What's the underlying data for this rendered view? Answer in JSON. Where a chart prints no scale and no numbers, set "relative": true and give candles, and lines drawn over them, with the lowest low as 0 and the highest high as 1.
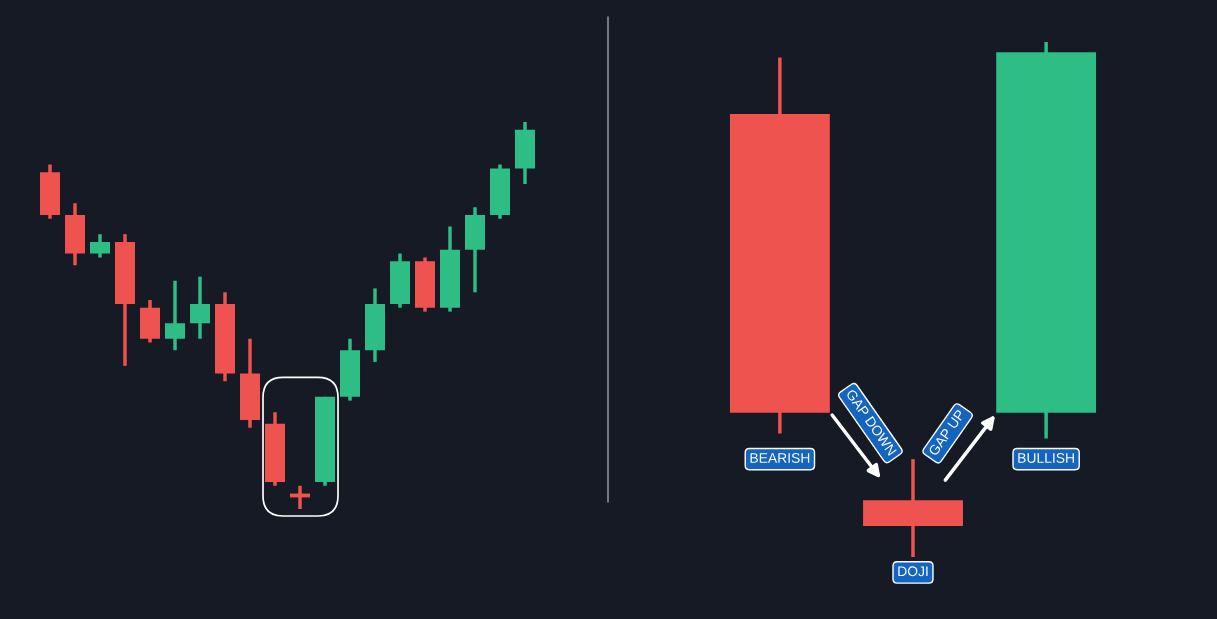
{
  "chart_data": [
    {
      "type": "candlestick",
      "relative": true,
      "categories": [
        null,
        null,
        null,
        null,
        null,
        null,
        null,
        null,
        null,
        null,
        null,
        null,
        null,
        null,
        null,
        null,
        null,
        null,
        null,
        null
      ],
      "ohlc": [
        [
          0.87,
          0.89,
          0.75,
          0.76
        ],
        [
          0.76,
          0.79,
          0.63,
          0.66
        ],
        [
          0.66,
          0.71,
          0.65,
          0.69
        ],
        [
          0.69,
          0.71,
          0.37,
          0.53
        ],
        [
          0.52,
          0.54,
          0.43,
          0.44
        ],
        [
          0.44,
          0.59,
          0.41,
          0.48
        ],
        [
          0.48,
          0.6,
          0.44,
          0.53
        ],
        [
          0.53,
          0.56,
          0.33,
          0.35
        ],
        [
          0.35,
          0.44,
          0.21,
          0.23
        ],
        [
          0.22,
          0.25,
          0.06,
          0.07
        ],
        [
          0.04,
          0.06,
          0.0,
          0.03
        ],
        [
          0.07,
          0.29,
          0.06,
          0.29
        ],
        [
          0.29,
          0.44,
          0.28,
          0.41
        ],
        [
          0.41,
          0.57,
          0.38,
          0.53
        ],
        [
          0.53,
          0.66,
          0.52,
          0.64
        ],
        [
          0.64,
          0.65,
          0.51,
          0.52
        ],
        [
          0.52,
          0.73,
          0.51,
          0.67
        ],
        [
          0.67,
          0.78,
          0.56,
          0.76
        ],
        [
          0.76,
          0.89,
          0.75,
          0.88
        ],
        [
          0.88,
          1.0,
          0.84,
          0.98
        ]
      ],
      "colors": [
        "#ef5350",
        "#ef5350",
        "#2dbd85",
        "#ef5350",
        "#ef5350",
        "#2dbd85",
        "#2dbd85",
        "#ef5350",
        "#ef5350",
        "#ef5350",
        "#ef5350",
        "#2dbd85",
        "#2dbd85",
        "#2dbd85",
        "#2dbd85",
        "#ef5350",
        "#2dbd85",
        "#2dbd85",
        "#2dbd85",
        "#2dbd85"
      ]
    },
    {
      "type": "candlestick",
      "relative": true,
      "categories": [
        null,
        null,
        null
      ],
      "ohlc": [
        [
          0.86,
          0.97,
          0.24,
          0.28
        ],
        [
          0.11,
          0.19,
          0.0,
          0.06
        ],
        [
          0.28,
          1.0,
          0.23,
          0.98
        ]
      ],
      "colors": [
        "#ef5350",
        "#ef5350",
        "#2dbd85"
      ],
      "annotations": [
        "BEARISH",
        "GAP DOWN",
        "GAP UP",
        "BULLISH",
        "DOJI"
      ]
    }
  ]
}
